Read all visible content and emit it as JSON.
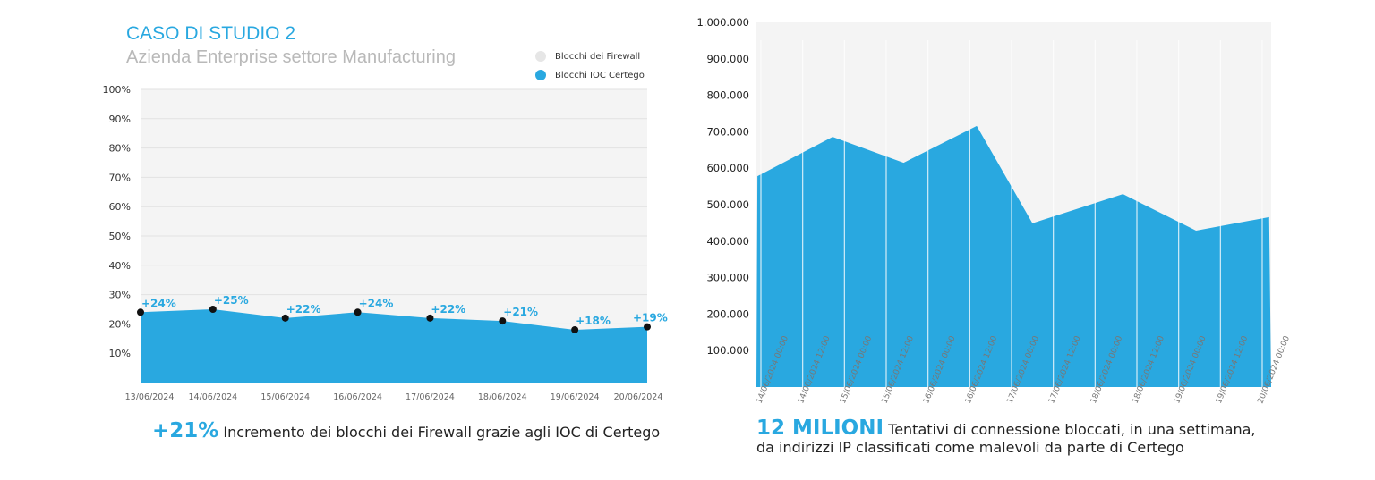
{
  "header": {
    "title": "CASO DI STUDIO 2",
    "subtitle": "Azienda Enterprise settore Manufacturing"
  },
  "legend": [
    {
      "label": "Blocchi dei Firewall",
      "color": "#e6e6e6"
    },
    {
      "label": "Blocchi IOC Certego",
      "color": "#29a8e0"
    }
  ],
  "captions": {
    "left_big": "+21%",
    "left_text": "Incremento dei blocchi dei Firewall grazie agli IOC di Certego",
    "right_big": "12 MILIONI",
    "right_text1": "Tentativi di connessione bloccati, in una settimana,",
    "right_text2": "da indirizzi IP classificati come malevoli da parte di Certego"
  },
  "chart_data": [
    {
      "type": "area",
      "categories": [
        "13/06/2024",
        "14/06/2024",
        "15/06/2024",
        "16/06/2024",
        "17/06/2024",
        "18/06/2024",
        "19/06/2024",
        "20/06/2024"
      ],
      "series": [
        {
          "name": "Blocchi IOC Certego",
          "values": [
            24,
            25,
            22,
            24,
            22,
            21,
            18,
            19
          ]
        }
      ],
      "data_labels": [
        "+24%",
        "+25%",
        "+22%",
        "+24%",
        "+22%",
        "+21%",
        "+18%",
        "+19%"
      ],
      "yticks": [
        "10%",
        "20%",
        "30%",
        "40%",
        "50%",
        "60%",
        "70%",
        "80%",
        "90%",
        "100%"
      ],
      "ylim": [
        0,
        100
      ],
      "colors": {
        "area": "#29a8e0",
        "background": "#f4f4f4"
      }
    },
    {
      "type": "area",
      "xticks": [
        "14/06/2024 00:00",
        "14/06/2024 12:00",
        "15/06/2024 00:00",
        "15/06/2024 12:00",
        "16/06/2024 00:00",
        "16/06/2024 12:00",
        "17/06/2024 00:00",
        "17/06/2024 12:00",
        "18/06/2024 00:00",
        "18/06/2024 12:00",
        "19/06/2024 00:00",
        "19/06/2024 12:00",
        "20/06/2024 00:00"
      ],
      "x_hours": [
        -1,
        20.6,
        41,
        62,
        78,
        104,
        125,
        146
      ],
      "values": [
        578000,
        686000,
        615000,
        716000,
        449000,
        529000,
        429000,
        466000
      ],
      "yticks": [
        "100.000",
        "200.000",
        "300.000",
        "400.000",
        "500.000",
        "600.000",
        "700.000",
        "800.000",
        "900.000",
        "1.000.000"
      ],
      "ylim": [
        0,
        1000000
      ],
      "colors": {
        "area": "#29a8e0",
        "background": "#f4f4f4"
      }
    }
  ]
}
